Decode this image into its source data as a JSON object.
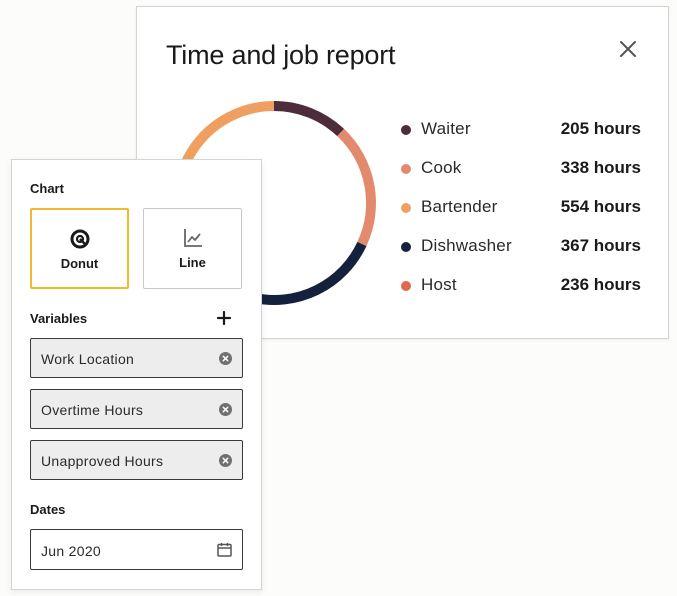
{
  "report": {
    "title": "Time and job report",
    "close_icon": "close-icon",
    "chart_data": {
      "type": "pie",
      "categories": [
        "Waiter",
        "Cook",
        "Bartender",
        "Dishwasher",
        "Host"
      ],
      "values": [
        205,
        338,
        554,
        367,
        236
      ],
      "unit": "hours",
      "legend": "right"
    },
    "legend": [
      {
        "label": "Waiter",
        "value": "205 hours",
        "color": "#4d2d3b"
      },
      {
        "label": "Cook",
        "value": "338 hours",
        "color": "#e48a6c"
      },
      {
        "label": "Bartender",
        "value": "554 hours",
        "color": "#efa060"
      },
      {
        "label": "Dishwasher",
        "value": "367 hours",
        "color": "#14213d"
      },
      {
        "label": "Host",
        "value": "236 hours",
        "color": "#e0684d"
      }
    ]
  },
  "panel": {
    "chart_label": "Chart",
    "chart_types": [
      {
        "label": "Donut",
        "icon": "donut-chart-icon",
        "selected": true
      },
      {
        "label": "Line",
        "icon": "line-chart-icon",
        "selected": false
      }
    ],
    "variables_label": "Variables",
    "add_icon": "plus-icon",
    "variables": [
      {
        "label": "Work Location"
      },
      {
        "label": "Overtime Hours"
      },
      {
        "label": "Unapproved Hours"
      }
    ],
    "dates_label": "Dates",
    "date_value": "Jun 2020",
    "date_icon": "calendar-icon",
    "accent_color": "#f2b92e"
  }
}
